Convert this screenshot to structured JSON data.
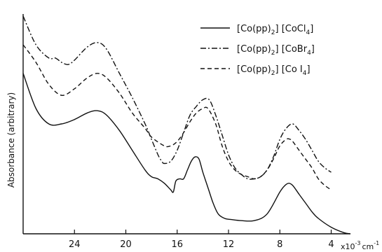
{
  "chart_data": {
    "type": "line",
    "title": "",
    "xlabel": "",
    "ylabel": "Absorbance (arbitrary)",
    "x_unit": {
      "prefix": "x10",
      "exponent": "-3",
      "base": "cm",
      "exponent2": "-1"
    },
    "xlim": [
      28,
      2.5
    ],
    "x_ticks": [
      24,
      20,
      16,
      12,
      8,
      4
    ],
    "x_tick_labels": [
      "24",
      "20",
      "16",
      "12",
      "8",
      "4"
    ],
    "y_axis": "arbitrary units, no tick labels",
    "ylim": [
      0,
      100
    ],
    "grid": false,
    "legend_position": "top-right",
    "series": [
      {
        "name": "[Co(pp)2][CoCl4]",
        "label_parts": {
          "a": "[Co(pp)",
          "sub": "2",
          "b": "] [CoCl",
          "sub2": "4",
          "c": "]"
        },
        "style": "solid",
        "x": [
          28,
          27,
          26,
          25,
          24,
          23,
          22.2,
          21.5,
          20.5,
          19.5,
          18.5,
          18,
          17.5,
          17,
          16.5,
          16.3,
          16.1,
          15.8,
          15.5,
          15.2,
          14.9,
          14.6,
          14.3,
          14,
          13.6,
          13.2,
          12.8,
          12.3,
          11.8,
          11,
          10,
          9,
          8,
          7.6,
          7.3,
          7,
          6.5,
          6,
          5.5,
          5,
          4,
          3,
          2.5
        ],
        "y": [
          73,
          57,
          50,
          50,
          52,
          55,
          56,
          54,
          47,
          38,
          29,
          26,
          25,
          23,
          20,
          19,
          24,
          25,
          25,
          29,
          33,
          35,
          34,
          28,
          21,
          14,
          9,
          7,
          6.5,
          6,
          6,
          9,
          19,
          22,
          23,
          22,
          18,
          14,
          10,
          7,
          3,
          0.5,
          0
        ]
      },
      {
        "name": "[Co(pp)2][CoBr4]",
        "label_parts": {
          "a": "[Co(pp)",
          "sub": "2",
          "b": "] [CoBr",
          "sub2": "4",
          "c": "]"
        },
        "style": "dash-dot",
        "x": [
          28,
          27,
          26,
          25.5,
          25,
          24.5,
          24,
          23,
          22.2,
          21.5,
          20.5,
          19.5,
          18.5,
          18,
          17.5,
          17.2,
          17,
          16.5,
          16,
          15.5,
          15,
          14.5,
          14,
          13.5,
          13,
          12.5,
          12,
          11.5,
          11,
          10.5,
          10,
          9.5,
          9,
          8.5,
          8,
          7.5,
          7,
          6.5,
          6,
          5.5,
          5,
          4.5,
          4
        ],
        "y": [
          99,
          86,
          80,
          80,
          78,
          77,
          79,
          85,
          87,
          84,
          73,
          62,
          50,
          43,
          36,
          33,
          32,
          33,
          38,
          46,
          54,
          58,
          61,
          61,
          54,
          45,
          36,
          30,
          27,
          25,
          25,
          26,
          29,
          35,
          43,
          48,
          50,
          47,
          43,
          38,
          33,
          30,
          28
        ]
      },
      {
        "name": "[Co(pp)2][CoI4]",
        "label_parts": {
          "a": "[Co(pp)",
          "sub": "2",
          "b": "] [Co I",
          "sub2": "4",
          "c": "]"
        },
        "style": "dashed",
        "x": [
          28,
          27,
          26,
          25,
          24,
          23,
          22.2,
          21.5,
          20.5,
          19.5,
          18.5,
          18,
          17,
          16.5,
          16,
          15.5,
          15,
          14.5,
          14,
          13.6,
          13,
          12.5,
          12,
          11.5,
          11,
          10.5,
          10,
          9.5,
          9,
          8.5,
          8,
          7.5,
          7.2,
          7,
          6.5,
          6,
          5.5,
          5,
          4.5,
          4
        ],
        "y": [
          86,
          78,
          68,
          63,
          66,
          71,
          73,
          71,
          64,
          55,
          48,
          44,
          40,
          40,
          42,
          46,
          51,
          55,
          57,
          57,
          50,
          40,
          33,
          29,
          27,
          26,
          25,
          26,
          29,
          34,
          40,
          43,
          43,
          42,
          38,
          34,
          30,
          25,
          22,
          20
        ]
      }
    ]
  }
}
